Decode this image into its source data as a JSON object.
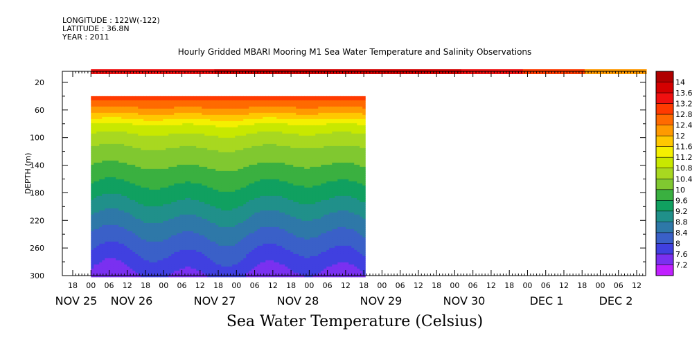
{
  "header": {
    "longitude": "LONGITUDE : 122W(-122)",
    "latitude": "LATITUDE : 36.8N",
    "year": "YEAR : 2011"
  },
  "title": "Hourly Gridded MBARI Mooring M1 Sea Water Temperature and Salinity Observations",
  "bottom_title": "Sea Water Temperature (Celsius)",
  "chart_data": {
    "type": "heatmap",
    "title": "Hourly Gridded MBARI Mooring M1 Sea Water Temperature and Salinity Observations",
    "xlabel": "",
    "ylabel": "DEPTH (m)",
    "ylim": [
      300,
      4
    ],
    "y_ticks": [
      20,
      60,
      100,
      140,
      180,
      220,
      260,
      300
    ],
    "x_hour_ticks": [
      "18",
      "00",
      "06",
      "12",
      "18",
      "00",
      "06",
      "12",
      "18",
      "00",
      "06",
      "12",
      "18",
      "00",
      "06",
      "12",
      "18",
      "00",
      "06",
      "12",
      "18",
      "00",
      "06",
      "12",
      "18",
      "00",
      "06",
      "12",
      "18",
      "00",
      "06",
      "12"
    ],
    "x_day_labels": [
      "NOV 25",
      "NOV 26",
      "NOV 27",
      "NOV 28",
      "NOV 29",
      "NOV 30",
      "DEC  1",
      "DEC  2"
    ],
    "colorbar": {
      "levels": [
        14,
        13.6,
        13.2,
        12.8,
        12.4,
        12,
        11.6,
        11.2,
        10.8,
        10.4,
        10,
        9.6,
        9.2,
        8.8,
        8.4,
        8,
        7.6,
        7.2
      ],
      "colors": [
        "#b00000",
        "#d40000",
        "#f01010",
        "#ff3a00",
        "#ff6a00",
        "#ff9a00",
        "#ffc800",
        "#f4f000",
        "#c8e800",
        "#a8d820",
        "#80c830",
        "#3ab040",
        "#10a060",
        "#20908a",
        "#2e78a8",
        "#3a60c8",
        "#4040e0",
        "#7a30f0",
        "#c020ff"
      ]
    },
    "surface_series": {
      "depth_m": 4,
      "time_range": [
        "NOV 25 00",
        "DEC  2 18"
      ],
      "values": [
        13.5,
        13.5,
        13.6,
        13.7,
        13.8,
        13.7,
        13.5,
        12.8,
        12.3
      ]
    },
    "profile_series": {
      "time_range": [
        "NOV 25 00",
        "NOV 28 18"
      ],
      "depths_m": [
        40,
        60,
        80,
        100,
        140,
        180,
        220,
        260,
        300
      ],
      "values": [
        13.0,
        12.2,
        11.2,
        10.6,
        10.0,
        9.4,
        8.7,
        8.1,
        7.5
      ]
    }
  }
}
